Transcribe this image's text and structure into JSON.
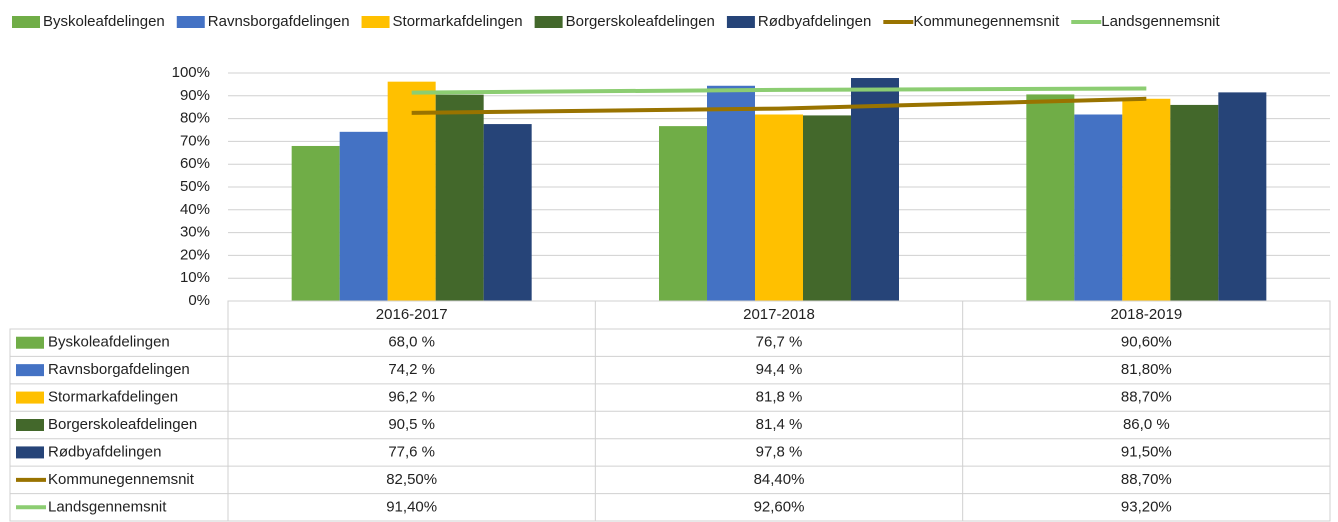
{
  "chart_data": {
    "type": "bar",
    "categories": [
      "2016-2017",
      "2017-2018",
      "2018-2019"
    ],
    "series": [
      {
        "name": "Byskoleafdelingen",
        "color": "#70ad47",
        "values": [
          68.0,
          76.7,
          90.6
        ],
        "value_labels": [
          "68,0 %",
          "76,7 %",
          "90,60%"
        ]
      },
      {
        "name": "Ravnsborgafdelingen",
        "color": "#4472c4",
        "values": [
          74.2,
          94.4,
          81.8
        ],
        "value_labels": [
          "74,2 %",
          "94,4 %",
          "81,80%"
        ]
      },
      {
        "name": "Stormarkafdelingen",
        "color": "#ffc000",
        "values": [
          96.2,
          81.8,
          88.7
        ],
        "value_labels": [
          "96,2 %",
          "81,8 %",
          "88,70%"
        ]
      },
      {
        "name": "Borgerskoleafdelingen",
        "color": "#43682b",
        "values": [
          90.5,
          81.4,
          86.0
        ],
        "value_labels": [
          "90,5 %",
          "81,4 %",
          "86,0 %"
        ]
      },
      {
        "name": "Rødbyafdelingen",
        "color": "#264478",
        "values": [
          77.6,
          97.8,
          91.5
        ],
        "value_labels": [
          "77,6 %",
          "97,8 %",
          "91,50%"
        ]
      },
      {
        "name": "Kommunegennemsnit",
        "color": "#997300",
        "type": "line",
        "values": [
          82.5,
          84.4,
          88.7
        ],
        "value_labels": [
          "82,50%",
          "84,40%",
          "88,70%"
        ]
      },
      {
        "name": "Landsgennemsnit",
        "color": "#8ccd72",
        "type": "line",
        "values": [
          91.4,
          92.6,
          93.2
        ],
        "value_labels": [
          "91,40%",
          "92,60%",
          "93,20%"
        ]
      }
    ],
    "ylim": [
      0,
      100
    ],
    "yticks": [
      {
        "value": 0,
        "label": "0%"
      },
      {
        "value": 10,
        "label": "10%"
      },
      {
        "value": 20,
        "label": "20%"
      },
      {
        "value": 30,
        "label": "30%"
      },
      {
        "value": 40,
        "label": "40%"
      },
      {
        "value": 50,
        "label": "50%"
      },
      {
        "value": 60,
        "label": "60%"
      },
      {
        "value": 70,
        "label": "70%"
      },
      {
        "value": 80,
        "label": "80%"
      },
      {
        "value": 90,
        "label": "90%"
      },
      {
        "value": 100,
        "label": "100%"
      }
    ],
    "grid": true,
    "legend": "top"
  }
}
